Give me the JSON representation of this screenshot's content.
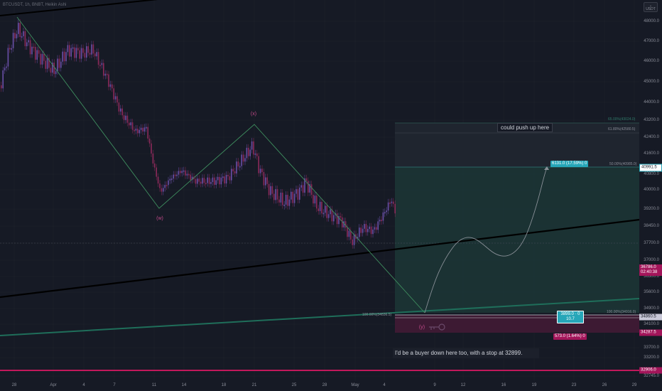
{
  "symbol_line": "BTCUSDT, 1h, BNBT, Heikin Ashi",
  "quote_currency": "USDT",
  "price_axis": {
    "ticks": [
      "48000.0",
      "47000.0",
      "46000.0",
      "45000.0",
      "44000.0",
      "43200.0",
      "42400.0",
      "41600.0",
      "40800.0",
      "40000.0",
      "39200.0",
      "38450.0",
      "37700.0",
      "37000.0",
      "36300.0",
      "35600.0",
      "34900.0",
      "34100.0",
      "33700.0",
      "33200.0",
      "32745.0"
    ],
    "tags": {
      "target": "40991.5",
      "current_price": "36786.0",
      "countdown": "02:40:38",
      "entry": "34860.5",
      "stop": "34287.5",
      "line_level": "32906.0"
    }
  },
  "time_axis": {
    "ticks": [
      "28",
      "Apr",
      "4",
      "7",
      "11",
      "14",
      "18",
      "21",
      "25",
      "28",
      "May",
      "4",
      "9",
      "12",
      "16",
      "19",
      "23",
      "26",
      "29"
    ]
  },
  "wave_labels": {
    "w": "(w)",
    "x": "(x)",
    "y": "(y)"
  },
  "fib_levels": {
    "l65": "65.00%(43024.0)",
    "l618": "61.80%(42580.5)",
    "l50": "50.00%(40985.0)",
    "l100_left": "100.00%(34836.5)",
    "l100_right": "100.00%(34916.0)"
  },
  "position": {
    "profit_label": "6131.0 (17.59%) 0",
    "entry_label_line1": "3899.0 · 0",
    "entry_label_line2": "10.7",
    "risk_label": "573.0 (1.64%) 0"
  },
  "annotations": {
    "top": "could push up here",
    "bottom": "I'd be a buyer down here too, with a stop at 32899."
  },
  "colors": {
    "background": "#161a25",
    "candle_up": "#6a4fa8",
    "candle_down": "#8c2a5a",
    "wave_line": "#3f8f5f",
    "profit_zone": "#1d3d3d",
    "risk_zone": "#4a1a35",
    "trendline": "#000000",
    "green_trendline": "#1f6e5a",
    "magenta_line": "#c2185b",
    "target_tag": "#26a6b8",
    "current_tag": "#a3155a",
    "stop_tag": "#a3155a"
  }
}
